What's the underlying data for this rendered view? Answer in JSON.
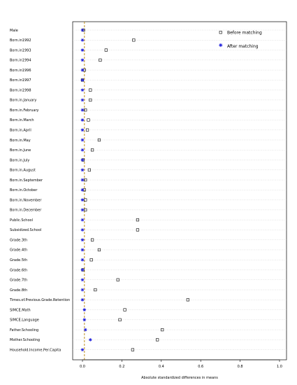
{
  "chart_data": {
    "type": "scatter",
    "title": "",
    "xlabel": "Absolute standardized differences in means",
    "ylabel": "",
    "xlim": [
      -0.05,
      1.02
    ],
    "x_ticks": [
      "0.0",
      "0.2",
      "0.4",
      "0.6",
      "0.8",
      "1.0"
    ],
    "x_tick_values": [
      0.0,
      0.2,
      0.4,
      0.6,
      0.8,
      1.0
    ],
    "reference_line_x": 0.01,
    "grid": "horizontal dotted",
    "legend_position": "top-right",
    "categories": [
      "Male",
      "Born.in1992",
      "Born.in1993",
      "Born.in1994",
      "Born.in1996",
      "Born.in1997",
      "Born.in1998",
      "Born.in.January",
      "Born.in.February",
      "Born.in.March",
      "Born.in.April",
      "Born.in.May",
      "Born.in.June",
      "Born.in.July",
      "Born.in.August",
      "Born.in.September",
      "Born.in.October",
      "Born.in.November",
      "Born.in.December",
      "Public.School",
      "Subsidized.School",
      "Grade.3th",
      "Grade.4th",
      "Grade.5th",
      "Grade.6th",
      "Grade.7th",
      "Grade.8th",
      "Times.of.Previous.Grade.Retention",
      "SIMCE.Math",
      "SIMCE.Language",
      "Father.Schooling",
      "Mother.Schooling",
      "Household.Income.Per.Capita"
    ],
    "series": [
      {
        "name": "Before matching",
        "marker": "open-square",
        "color": "#000000",
        "values": [
          0.005,
          0.26,
          0.12,
          0.09,
          0.01,
          0.0,
          0.04,
          0.04,
          0.015,
          0.03,
          0.025,
          0.085,
          0.05,
          0.003,
          0.035,
          0.015,
          0.01,
          0.015,
          0.015,
          0.28,
          0.28,
          0.05,
          0.085,
          0.045,
          0.002,
          0.18,
          0.065,
          0.535,
          0.215,
          0.19,
          0.405,
          0.38,
          0.255
        ]
      },
      {
        "name": "After matching",
        "marker": "asterisk",
        "color": "#1a1adb",
        "values": [
          0.0,
          0.0,
          0.0,
          0.0,
          0.0,
          0.0,
          0.0,
          0.0,
          0.0,
          0.0,
          0.0,
          0.0,
          0.0,
          0.0,
          0.0,
          0.0,
          0.0,
          0.0,
          0.0,
          0.0,
          0.0,
          0.0,
          0.0,
          0.0,
          0.0,
          0.0,
          0.0,
          0.0,
          0.01,
          0.01,
          0.015,
          0.04,
          0.0
        ]
      }
    ]
  }
}
